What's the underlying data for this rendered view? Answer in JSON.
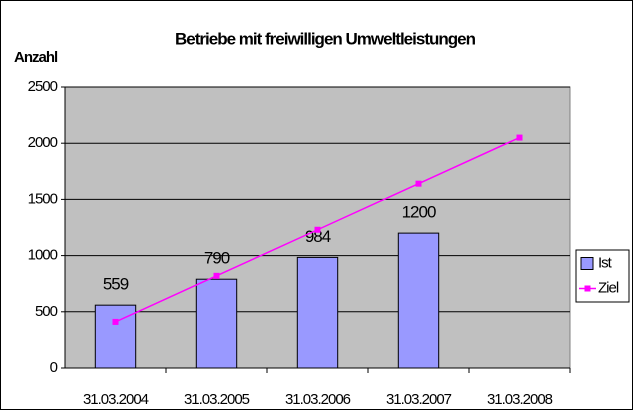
{
  "chart_data": {
    "type": "bar",
    "title": "Betriebe mit freiwilligen Umweltleistungen",
    "y_axis_label": "Anzahl",
    "categories": [
      "31.03.2004",
      "31.03.2005",
      "31.03.2006",
      "31.03.2007",
      "31.03.2008"
    ],
    "series": [
      {
        "name": "Ist",
        "type": "bar",
        "color": "#9999ff",
        "values": [
          559,
          790,
          984,
          1200,
          null
        ],
        "data_labels": true
      },
      {
        "name": "Ziel",
        "type": "line",
        "color": "#ff00ff",
        "values": [
          410,
          820,
          1230,
          1640,
          2050
        ]
      }
    ],
    "ylim": [
      0,
      2500
    ],
    "yticks": [
      0,
      500,
      1000,
      1500,
      2000,
      2500
    ],
    "grid": true,
    "legend": "right",
    "plot_background": "#c0c0c0"
  }
}
